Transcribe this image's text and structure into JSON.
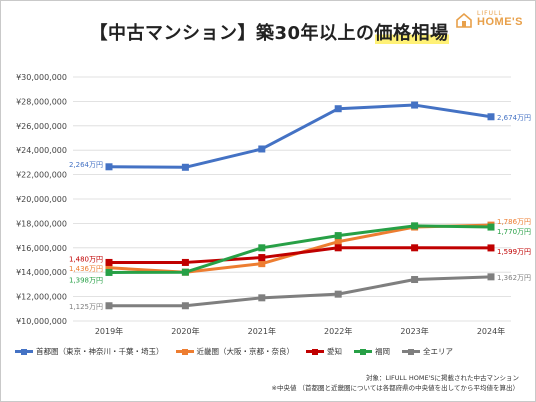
{
  "title": {
    "prefix": "【中古マンション】築30年以上の",
    "highlight": "価格相場"
  },
  "logo": {
    "line1": "LIFULL",
    "line2": "HOME'S",
    "icon": "house-icon"
  },
  "chart_data": {
    "type": "line",
    "categories": [
      "2019年",
      "2020年",
      "2021年",
      "2022年",
      "2023年",
      "2024年"
    ],
    "ylim": [
      10000000,
      30000000
    ],
    "y_ticks": [
      10000000,
      12000000,
      14000000,
      16000000,
      18000000,
      20000000,
      22000000,
      24000000,
      26000000,
      28000000,
      30000000
    ],
    "y_tick_labels": [
      "¥10,000,000",
      "¥12,000,000",
      "¥14,000,000",
      "¥16,000,000",
      "¥18,000,000",
      "¥20,000,000",
      "¥22,000,000",
      "¥24,000,000",
      "¥26,000,000",
      "¥28,000,000",
      "¥30,000,000"
    ],
    "grid": true,
    "legend_position": "bottom",
    "series": [
      {
        "name": "首都圏（東京・神奈川・千葉・埼玉）",
        "color": "#4472c4",
        "values": [
          22640000,
          22600000,
          24100000,
          27400000,
          27700000,
          26740000
        ],
        "start_label": "2,264万円",
        "end_label": "2,674万円"
      },
      {
        "name": "近畿圏（大阪・京都・奈良）",
        "color": "#ed7d31",
        "values": [
          14360000,
          14000000,
          14700000,
          16500000,
          17700000,
          17860000
        ],
        "start_label": "1,436万円",
        "end_label": "1,786万円"
      },
      {
        "name": "愛知",
        "color": "#c00000",
        "values": [
          14800000,
          14800000,
          15200000,
          16000000,
          16000000,
          15990000
        ],
        "start_label": "1,480万円",
        "end_label": "1,599万円"
      },
      {
        "name": "福岡",
        "color": "#27a046",
        "values": [
          13980000,
          14000000,
          16000000,
          17000000,
          17800000,
          17700000
        ],
        "start_label": "1,398万円",
        "end_label": "1,770万円"
      },
      {
        "name": "全エリア",
        "color": "#7f7f7f",
        "values": [
          11250000,
          11250000,
          11900000,
          12200000,
          13400000,
          13620000
        ],
        "start_label": "1,125万円",
        "end_label": "1,362万円"
      }
    ]
  },
  "note": {
    "line1": "対象：LIFULL HOME'Sに掲載された中古マンション",
    "line2": "※中央値 （首都圏と近畿圏については各都府県の中央値を出してから平均値を算出）"
  }
}
